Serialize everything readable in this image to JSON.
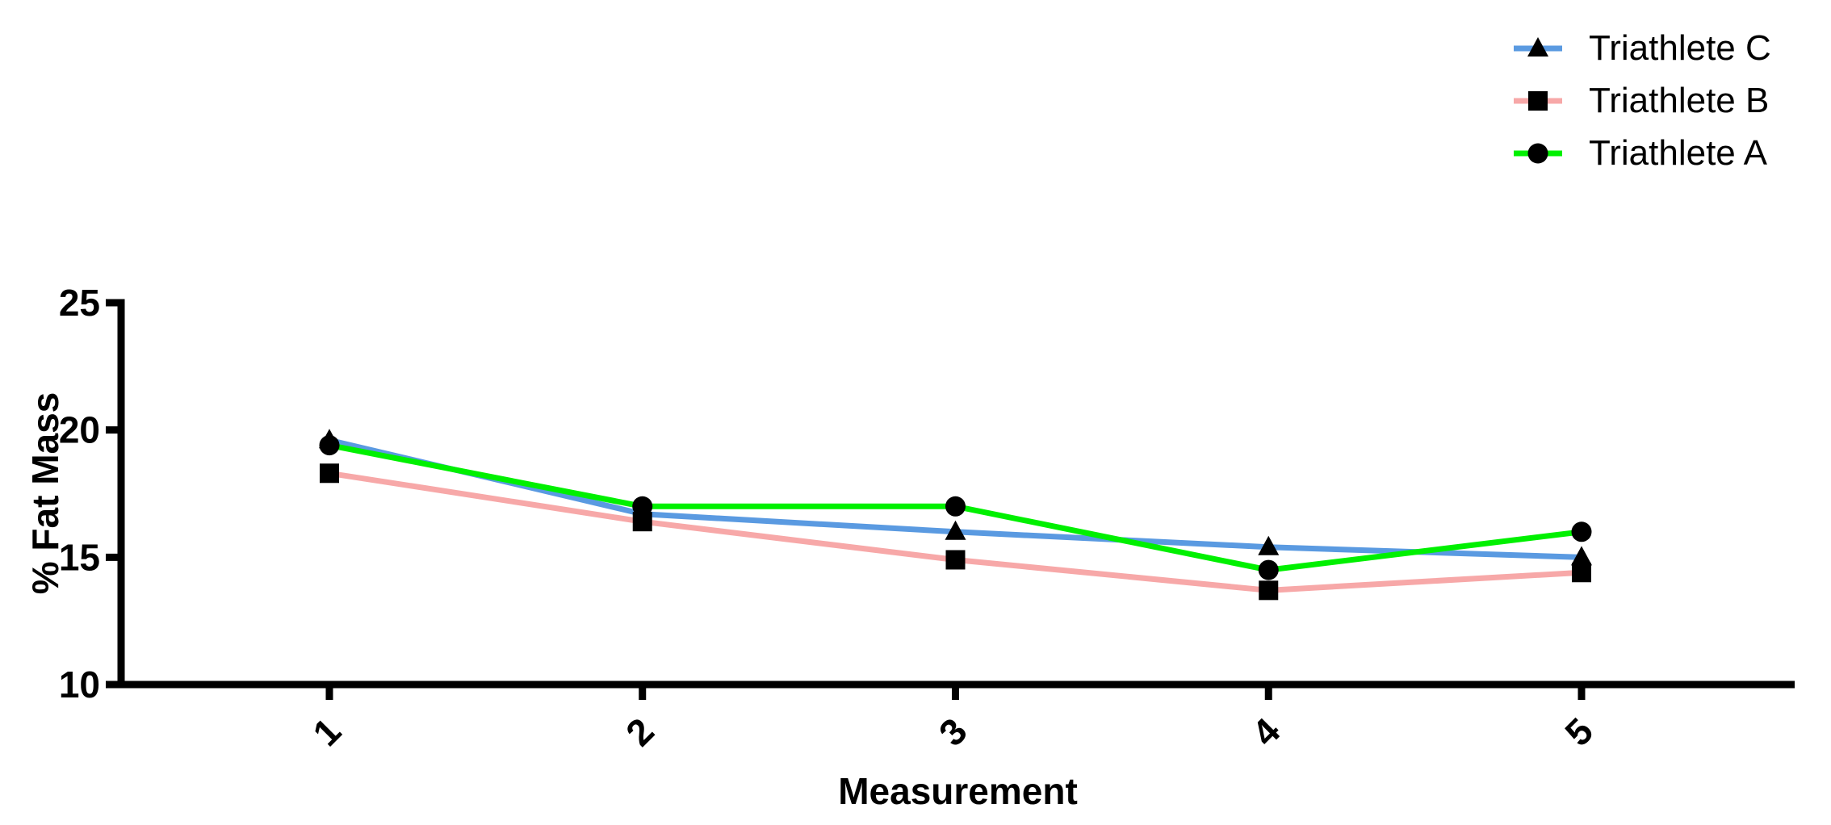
{
  "chart_data": {
    "type": "line",
    "title": "",
    "xlabel": "Measurement",
    "ylabel": "% Fat Mass",
    "x_categories": [
      "1",
      "2",
      "3",
      "4",
      "5"
    ],
    "ylim": [
      10,
      25
    ],
    "yticks": [
      10,
      15,
      20,
      25
    ],
    "grid": false,
    "legend_position": "top-right",
    "axis_color": "#000000",
    "text_color": "#000000",
    "background_color": "#ffffff",
    "series": [
      {
        "name": "Triathlete C",
        "color": "#5a9ae1",
        "marker": "triangle",
        "marker_color": "#000000",
        "values": [
          19.6,
          16.7,
          16.0,
          15.4,
          15.0
        ]
      },
      {
        "name": "Triathlete B",
        "color": "#f7a8a8",
        "marker": "square",
        "marker_color": "#000000",
        "values": [
          18.3,
          16.4,
          14.9,
          13.7,
          14.4
        ]
      },
      {
        "name": "Triathlete A",
        "color": "#00f000",
        "marker": "circle",
        "marker_color": "#000000",
        "values": [
          19.4,
          17.0,
          17.0,
          14.5,
          16.0
        ]
      }
    ]
  }
}
